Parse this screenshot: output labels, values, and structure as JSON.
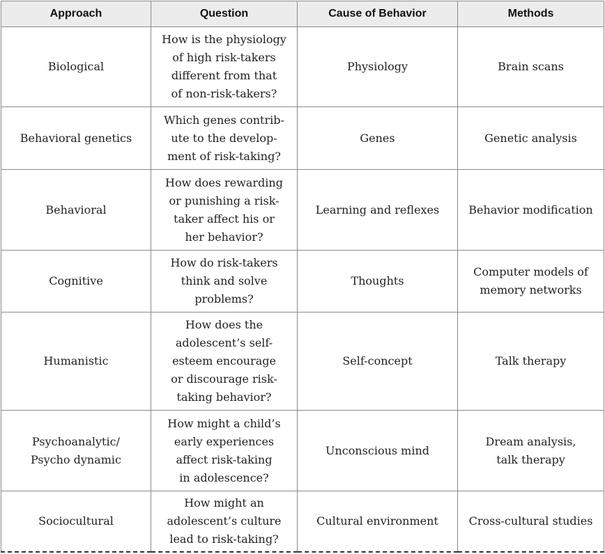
{
  "table": {
    "headers": [
      "Approach",
      "Question",
      "Cause of Behavior",
      "Methods"
    ],
    "rows": [
      {
        "approach": [
          "Biological"
        ],
        "question": [
          "How is the physiology",
          "of high risk-takers",
          "different from that",
          "of non-risk-takers?"
        ],
        "cause": [
          "Physiology"
        ],
        "methods": [
          "Brain scans"
        ]
      },
      {
        "approach": [
          "Behavioral genetics"
        ],
        "question": [
          "Which genes contrib-",
          "ute to the develop-",
          "ment of risk-taking?"
        ],
        "cause": [
          "Genes"
        ],
        "methods": [
          "Genetic analysis"
        ]
      },
      {
        "approach": [
          "Behavioral"
        ],
        "question": [
          "How does rewarding",
          "or punishing a risk-",
          "taker affect his or",
          "her behavior?"
        ],
        "cause": [
          "Learning and reflexes"
        ],
        "methods": [
          "Behavior modification"
        ]
      },
      {
        "approach": [
          "Cognitive"
        ],
        "question": [
          "How do risk-takers",
          "think and solve",
          "problems?"
        ],
        "cause": [
          "Thoughts"
        ],
        "methods": [
          "Computer models of",
          "memory networks"
        ]
      },
      {
        "approach": [
          "Humanistic"
        ],
        "question": [
          "How does the",
          "adolescent’s self-",
          "esteem encourage",
          "or discourage risk-",
          "taking behavior?"
        ],
        "cause": [
          "Self-concept"
        ],
        "methods": [
          "Talk therapy"
        ]
      },
      {
        "approach": [
          "Psychoanalytic/",
          "Psycho dynamic"
        ],
        "question": [
          "How might a child’s",
          "early experiences",
          "affect risk-taking",
          "in adolescence?"
        ],
        "cause": [
          "Unconscious mind"
        ],
        "methods": [
          "Dream analysis,",
          "talk therapy"
        ]
      },
      {
        "approach": [
          "Sociocultural"
        ],
        "question": [
          "How might an",
          "adolescent’s culture",
          "lead to risk-taking?"
        ],
        "cause": [
          "Cultural environment"
        ],
        "methods": [
          "Cross-cultural studies"
        ]
      }
    ]
  }
}
